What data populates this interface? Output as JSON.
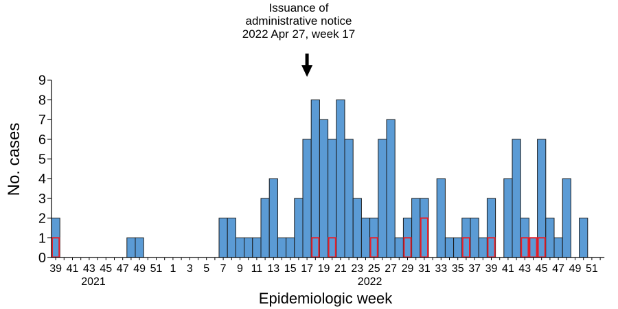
{
  "chart_data": {
    "type": "bar",
    "xlabel": "Epidemiologic week",
    "ylabel": "No. cases",
    "ylim": [
      0,
      9
    ],
    "yticks": [
      "0",
      "1",
      "2",
      "3",
      "4",
      "5",
      "6",
      "7",
      "8",
      "9"
    ],
    "weeks": [
      39,
      40,
      41,
      42,
      43,
      44,
      45,
      46,
      47,
      48,
      49,
      50,
      51,
      52,
      1,
      2,
      3,
      4,
      5,
      6,
      7,
      8,
      9,
      10,
      11,
      12,
      13,
      14,
      15,
      16,
      17,
      18,
      19,
      20,
      21,
      22,
      23,
      24,
      25,
      26,
      27,
      28,
      29,
      30,
      31,
      32,
      33,
      34,
      35,
      36,
      37,
      38,
      39,
      40,
      41,
      42,
      43,
      44,
      45,
      46,
      47,
      48,
      49,
      50,
      51,
      52
    ],
    "week_tick_labels": [
      "39",
      "41",
      "43",
      "45",
      "47",
      "49",
      "51",
      "1",
      "3",
      "5",
      "7",
      "9",
      "11",
      "13",
      "15",
      "17",
      "19",
      "21",
      "23",
      "25",
      "27",
      "29",
      "31",
      "33",
      "35",
      "37",
      "39",
      "41",
      "43",
      "45",
      "47",
      "49",
      "51"
    ],
    "year_labels": [
      "2021",
      "2022"
    ],
    "series": [
      {
        "values": [
          2,
          0,
          0,
          0,
          0,
          0,
          0,
          0,
          0,
          1,
          1,
          0,
          0,
          0,
          0,
          0,
          0,
          0,
          0,
          0,
          2,
          2,
          1,
          1,
          1,
          3,
          4,
          1,
          1,
          3,
          6,
          8,
          7,
          6,
          8,
          6,
          3,
          2,
          2,
          6,
          7,
          1,
          2,
          3,
          3,
          0,
          4,
          1,
          1,
          2,
          2,
          1,
          3,
          0,
          4,
          6,
          2,
          1,
          6,
          2,
          1,
          4,
          0,
          2,
          0,
          0
        ],
        "color": "#5b9bd5"
      },
      {
        "values": [
          1,
          0,
          0,
          0,
          0,
          0,
          0,
          0,
          0,
          0,
          0,
          0,
          0,
          0,
          0,
          0,
          0,
          0,
          0,
          0,
          0,
          0,
          0,
          0,
          0,
          0,
          0,
          0,
          0,
          0,
          0,
          1,
          0,
          1,
          0,
          0,
          0,
          0,
          1,
          0,
          0,
          0,
          1,
          0,
          2,
          0,
          0,
          0,
          0,
          1,
          0,
          0,
          1,
          0,
          0,
          0,
          1,
          1,
          1,
          0,
          0,
          0,
          0,
          0,
          0,
          0
        ],
        "color": "#e8202a"
      }
    ],
    "annotation": {
      "lines": [
        "Issuance of",
        "administrative notice",
        "2022 Apr 27, week 17"
      ],
      "week_index": 30
    }
  }
}
